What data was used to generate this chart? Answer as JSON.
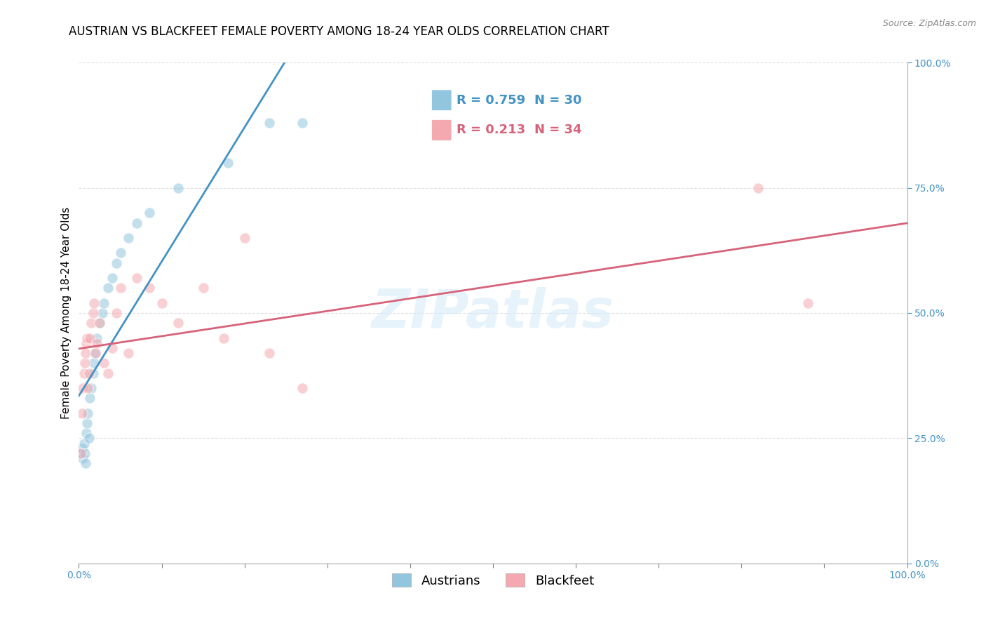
{
  "title": "AUSTRIAN VS BLACKFEET FEMALE POVERTY AMONG 18-24 YEAR OLDS CORRELATION CHART",
  "source": "Source: ZipAtlas.com",
  "ylabel": "Female Poverty Among 18-24 Year Olds",
  "xlim": [
    0,
    1.0
  ],
  "ylim": [
    0,
    1.0
  ],
  "austrians_color": "#92c5de",
  "blackfeet_color": "#f4a9b0",
  "trendline_austrians_color": "#4393c3",
  "trendline_blackfeet_color": "#d6637a",
  "legend_r_austrians": "R = 0.759",
  "legend_n_austrians": "N = 30",
  "legend_r_blackfeet": "R = 0.213",
  "legend_n_blackfeet": "N = 34",
  "legend_color_austrians": "#4393c3",
  "legend_color_blackfeet": "#d6637a",
  "watermark": "ZIPatlas",
  "austrians_x": [
    0.002,
    0.004,
    0.005,
    0.006,
    0.007,
    0.008,
    0.009,
    0.01,
    0.011,
    0.012,
    0.013,
    0.015,
    0.017,
    0.018,
    0.02,
    0.022,
    0.025,
    0.028,
    0.03,
    0.035,
    0.04,
    0.045,
    0.05,
    0.06,
    0.07,
    0.085,
    0.12,
    0.18,
    0.23,
    0.27
  ],
  "austrians_y": [
    0.22,
    0.23,
    0.21,
    0.24,
    0.22,
    0.2,
    0.26,
    0.28,
    0.3,
    0.25,
    0.33,
    0.35,
    0.38,
    0.4,
    0.42,
    0.45,
    0.48,
    0.5,
    0.52,
    0.55,
    0.57,
    0.6,
    0.62,
    0.65,
    0.68,
    0.7,
    0.75,
    0.8,
    0.88,
    0.88
  ],
  "blackfeet_x": [
    0.002,
    0.004,
    0.005,
    0.006,
    0.007,
    0.008,
    0.009,
    0.01,
    0.011,
    0.012,
    0.013,
    0.015,
    0.017,
    0.018,
    0.02,
    0.022,
    0.025,
    0.03,
    0.035,
    0.04,
    0.045,
    0.05,
    0.06,
    0.07,
    0.085,
    0.1,
    0.12,
    0.15,
    0.175,
    0.2,
    0.23,
    0.27,
    0.82,
    0.88
  ],
  "blackfeet_y": [
    0.22,
    0.3,
    0.35,
    0.38,
    0.4,
    0.42,
    0.44,
    0.45,
    0.35,
    0.38,
    0.45,
    0.48,
    0.5,
    0.52,
    0.42,
    0.44,
    0.48,
    0.4,
    0.38,
    0.43,
    0.5,
    0.55,
    0.42,
    0.57,
    0.55,
    0.52,
    0.48,
    0.55,
    0.45,
    0.65,
    0.42,
    0.35,
    0.75,
    0.52
  ],
  "marker_size": 120,
  "marker_alpha": 0.55,
  "grid_color": "#cccccc",
  "grid_style": "--",
  "grid_alpha": 0.6,
  "background_color": "#ffffff",
  "title_fontsize": 12,
  "axis_label_fontsize": 11,
  "tick_fontsize": 10,
  "legend_fontsize": 13,
  "right_tick_color": "#4393c3"
}
